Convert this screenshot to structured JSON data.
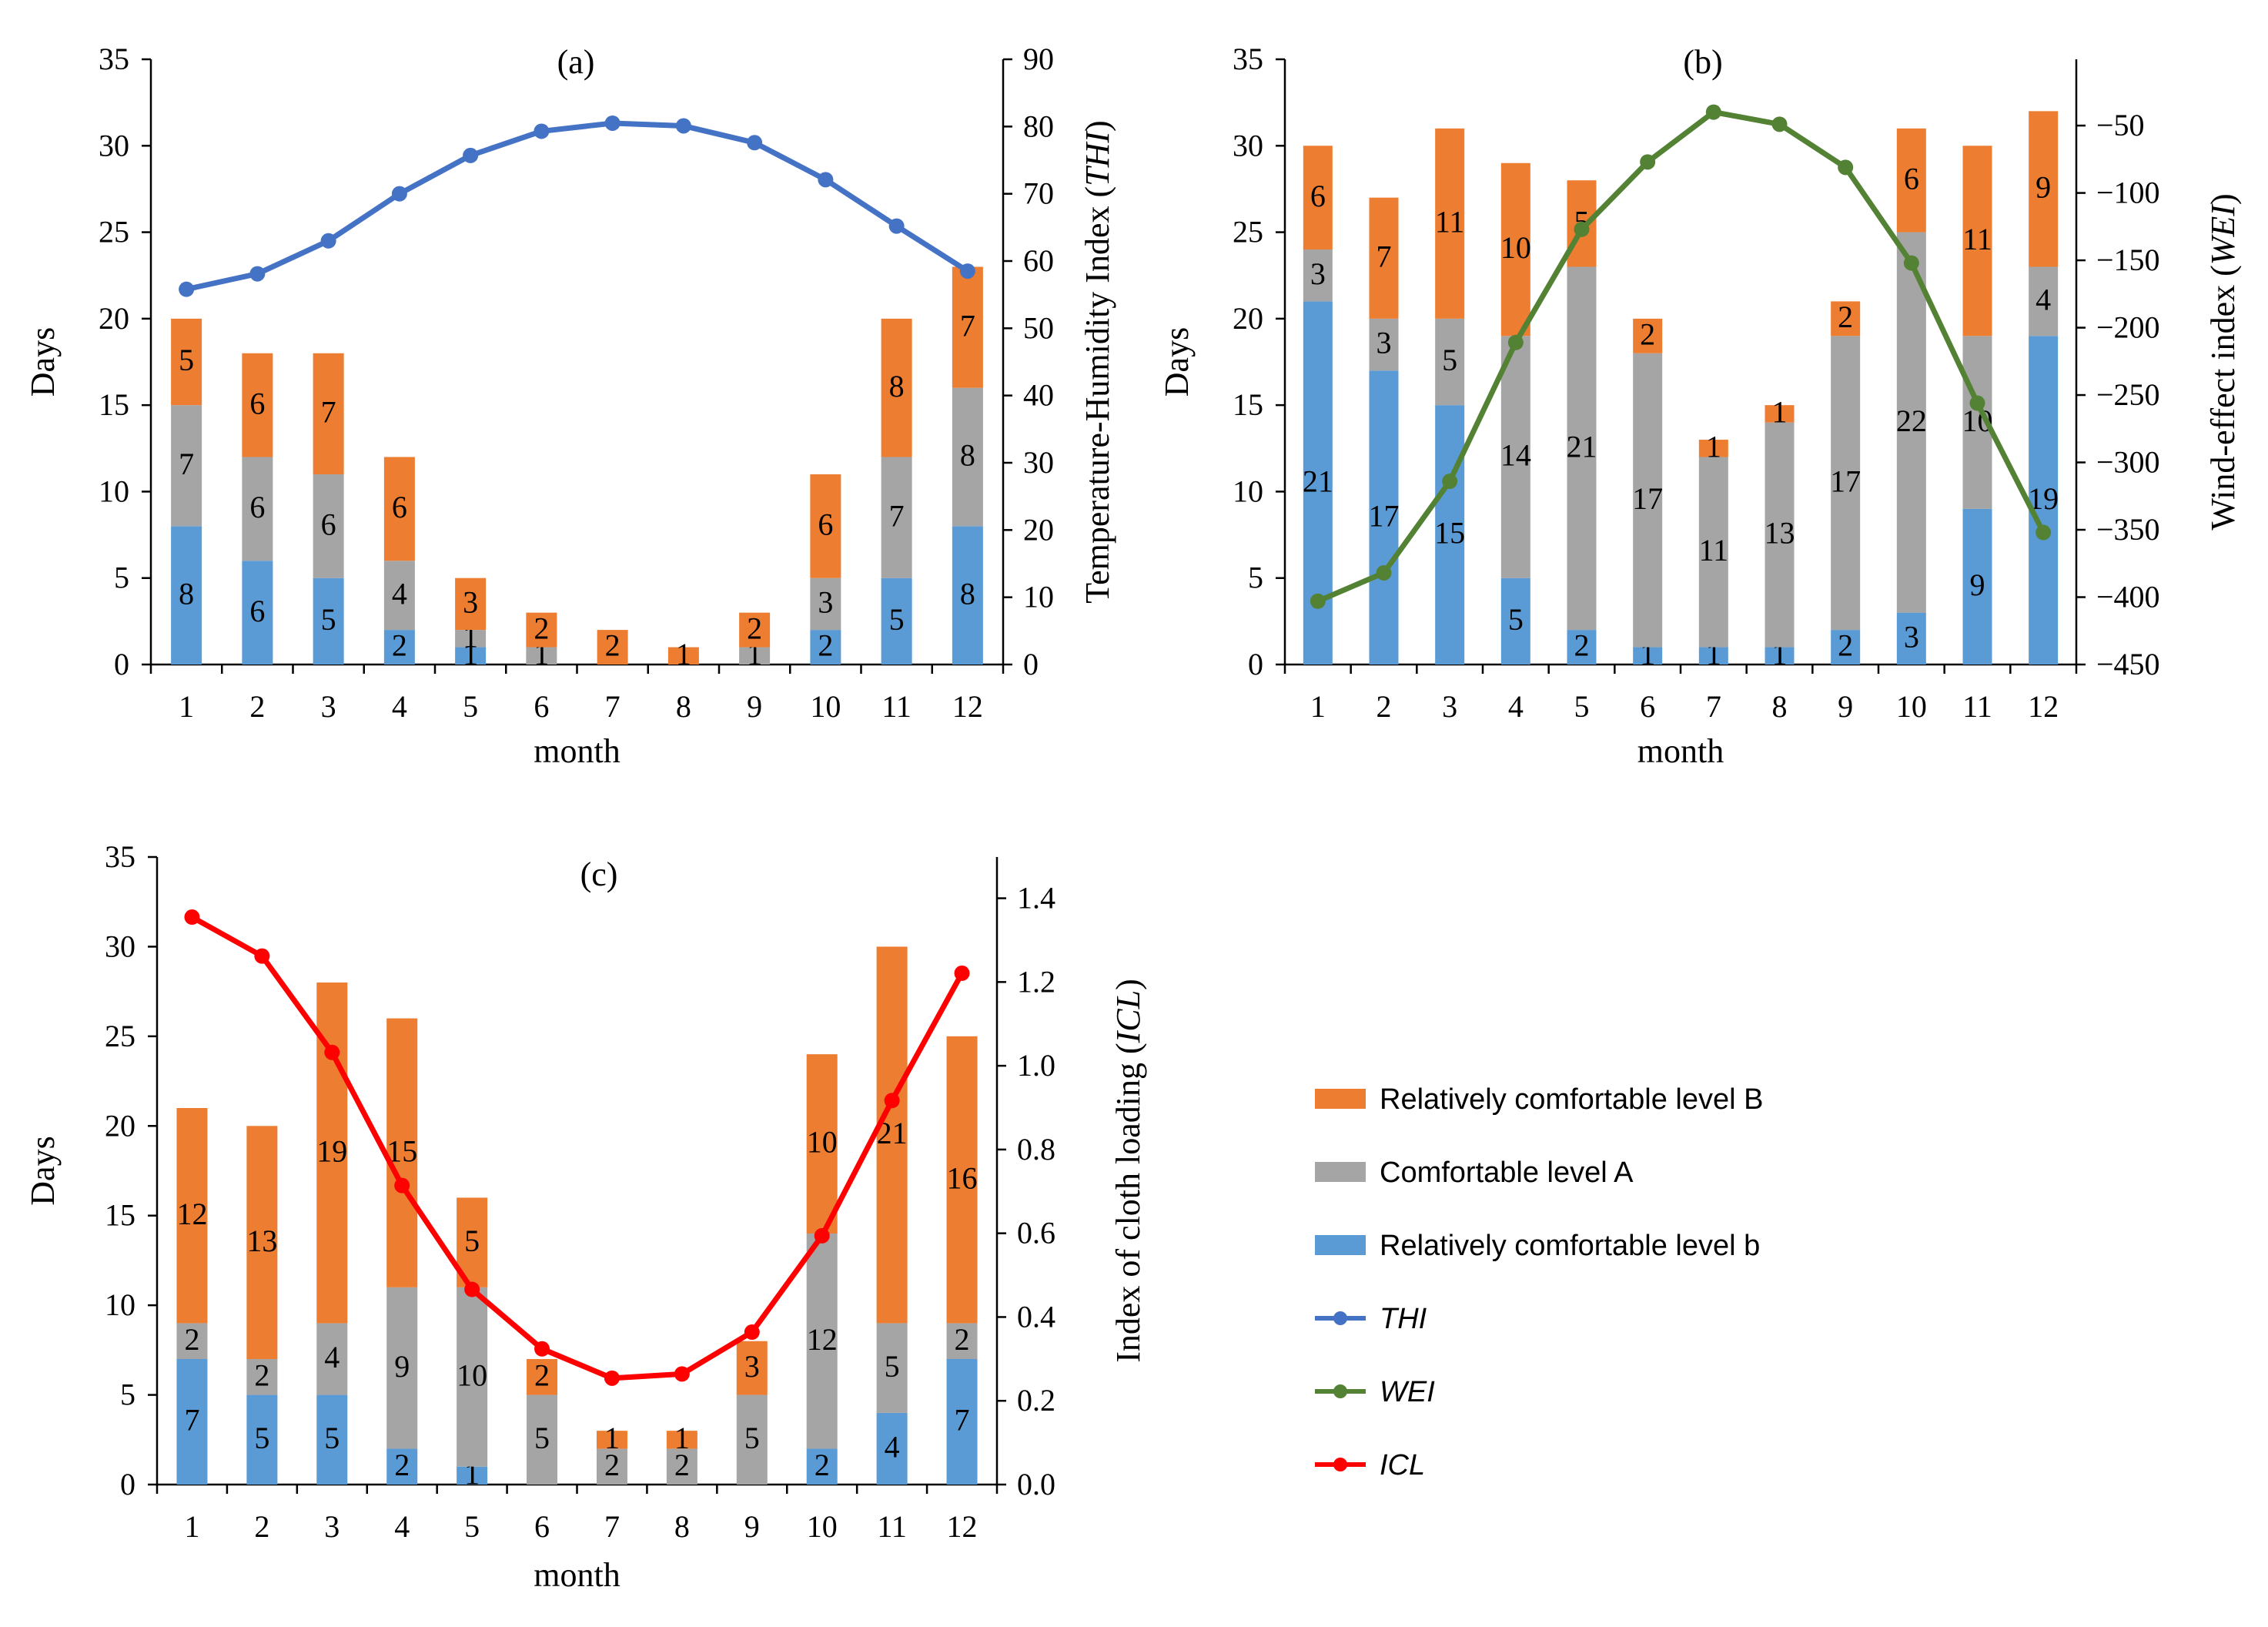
{
  "colors": {
    "level_B": "#ED7D31",
    "level_A": "#A5A5A5",
    "level_b": "#5B9BD5",
    "THI": "#4472C4",
    "WEI": "#548235",
    "ICL": "#FF0000"
  },
  "legend": {
    "items": [
      {
        "key": "B",
        "label": "Relatively comfortable level B",
        "kind": "bar",
        "color": "#ED7D31"
      },
      {
        "key": "A",
        "label": "Comfortable level A",
        "kind": "bar",
        "color": "#A5A5A5"
      },
      {
        "key": "b",
        "label": "Relatively comfortable level b",
        "kind": "bar",
        "color": "#5B9BD5"
      },
      {
        "key": "THI",
        "label": "THI",
        "kind": "line",
        "color": "#4472C4"
      },
      {
        "key": "WEI",
        "label": "WEI",
        "kind": "line",
        "color": "#548235"
      },
      {
        "key": "ICL",
        "label": "ICL",
        "kind": "line",
        "color": "#FF0000"
      }
    ]
  },
  "chart_data": [
    {
      "type": "bar",
      "stacked": true,
      "title": "(a)",
      "xlabel": "month",
      "ylabel": "Days",
      "y2label_parts": [
        {
          "t": "Temperature-Humidity Index ("
        },
        {
          "t": "THI",
          "it": true
        },
        {
          "t": ")"
        }
      ],
      "ylim": [
        0,
        35
      ],
      "y2lim": [
        0,
        90
      ],
      "yticks": [
        0,
        5,
        10,
        15,
        20,
        25,
        30,
        35
      ],
      "y2ticks": [
        0,
        10,
        20,
        30,
        40,
        50,
        60,
        70,
        80,
        90
      ],
      "y2_tick_labels": [
        "0",
        "10",
        "20",
        "30",
        "40",
        "50",
        "60",
        "70",
        "80",
        "90"
      ],
      "categories": [
        "1",
        "2",
        "3",
        "4",
        "5",
        "6",
        "7",
        "8",
        "9",
        "10",
        "11",
        "12"
      ],
      "label_font": "sans",
      "series": [
        {
          "name": "Relatively comfortable level b",
          "color": "#5B9BD5",
          "values": [
            8,
            6,
            5,
            2,
            1,
            0,
            0,
            0,
            0,
            2,
            5,
            8
          ]
        },
        {
          "name": "Comfortable level A",
          "color": "#A5A5A5",
          "values": [
            7,
            6,
            6,
            4,
            1,
            1,
            0,
            0,
            1,
            3,
            7,
            8
          ]
        },
        {
          "name": "Relatively comfortable level B",
          "color": "#ED7D31",
          "values": [
            5,
            6,
            7,
            6,
            3,
            2,
            2,
            1,
            2,
            6,
            8,
            7
          ]
        }
      ],
      "line": {
        "name": "THI",
        "color": "#4472C4",
        "values": [
          55.8,
          58.1,
          63.0,
          70.0,
          75.7,
          79.3,
          80.5,
          80.1,
          77.6,
          72.1,
          65.2,
          58.5
        ]
      }
    },
    {
      "type": "bar",
      "stacked": true,
      "title": "(b)",
      "xlabel": "month",
      "ylabel": "Days",
      "y2label_parts": [
        {
          "t": "Wind-effect index  ("
        },
        {
          "t": "WEI",
          "it": true
        },
        {
          "t": ")"
        }
      ],
      "ylim": [
        0,
        35
      ],
      "y2lim": [
        -450,
        -0.8
      ],
      "yticks": [
        0,
        5,
        10,
        15,
        20,
        25,
        30,
        35
      ],
      "y2ticks": [
        -450,
        -400,
        -350,
        -300,
        -250,
        -200,
        -150,
        -100,
        -50
      ],
      "y2_tick_labels": [
        "−450",
        "−400",
        "−350",
        "−300",
        "−250",
        "−200",
        "−150",
        "−100",
        "−50"
      ],
      "categories": [
        "1",
        "2",
        "3",
        "4",
        "5",
        "6",
        "7",
        "8",
        "9",
        "10",
        "11",
        "12"
      ],
      "label_font": "serif",
      "series": [
        {
          "name": "Relatively comfortable level b",
          "color": "#5B9BD5",
          "values": [
            21,
            17,
            15,
            5,
            2,
            1,
            1,
            1,
            2,
            3,
            9,
            19
          ]
        },
        {
          "name": "Comfortable level A",
          "color": "#A5A5A5",
          "values": [
            3,
            3,
            5,
            14,
            21,
            17,
            11,
            13,
            17,
            22,
            10,
            4
          ]
        },
        {
          "name": "Relatively comfortable level B",
          "color": "#ED7D31",
          "values": [
            6,
            7,
            11,
            10,
            5,
            2,
            1,
            1,
            2,
            6,
            11,
            9
          ]
        }
      ],
      "line": {
        "name": "WEI",
        "color": "#548235",
        "values": [
          -403,
          -382,
          -314,
          -211,
          -127,
          -77,
          -40,
          -49,
          -81,
          -152,
          -256,
          -352
        ]
      }
    },
    {
      "type": "bar",
      "stacked": true,
      "title": "(c)",
      "xlabel": "month",
      "ylabel": "Days",
      "y2label_parts": [
        {
          "t": "Index of cloth loading  ("
        },
        {
          "t": "ICL",
          "it": true
        },
        {
          "t": ")"
        }
      ],
      "ylim": [
        0,
        35
      ],
      "y2lim": [
        0,
        1.4985
      ],
      "yticks": [
        0,
        5,
        10,
        15,
        20,
        25,
        30,
        35
      ],
      "y2ticks": [
        0,
        0.2,
        0.4,
        0.6,
        0.8,
        1.0,
        1.2,
        1.4
      ],
      "y2_tick_labels": [
        "0.0",
        "0.2",
        "0.4",
        "0.6",
        "0.8",
        "1.0",
        "1.2",
        "1.4"
      ],
      "categories": [
        "1",
        "2",
        "3",
        "4",
        "5",
        "6",
        "7",
        "8",
        "9",
        "10",
        "11",
        "12"
      ],
      "label_font": "serif",
      "series": [
        {
          "name": "Relatively comfortable level b",
          "color": "#5B9BD5",
          "values": [
            7,
            5,
            5,
            2,
            1,
            0,
            0,
            0,
            0,
            2,
            4,
            7
          ]
        },
        {
          "name": "Comfortable level A",
          "color": "#A5A5A5",
          "values": [
            2,
            2,
            4,
            9,
            10,
            5,
            2,
            2,
            5,
            12,
            5,
            2
          ]
        },
        {
          "name": "Relatively comfortable level B",
          "color": "#ED7D31",
          "values": [
            12,
            13,
            19,
            15,
            5,
            2,
            1,
            1,
            3,
            10,
            21,
            16
          ]
        }
      ],
      "line": {
        "name": "ICL",
        "color": "#FF0000",
        "values": [
          1.355,
          1.262,
          1.032,
          0.714,
          0.466,
          0.324,
          0.254,
          0.264,
          0.364,
          0.594,
          0.917,
          1.221
        ]
      }
    }
  ]
}
